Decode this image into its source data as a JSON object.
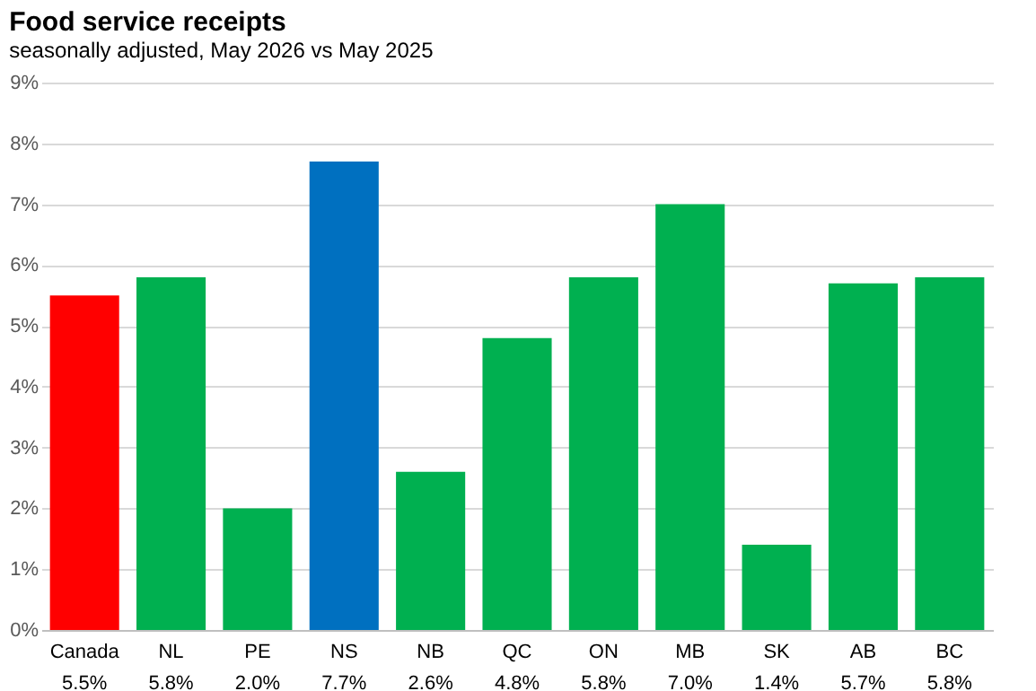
{
  "chart_data": {
    "type": "bar",
    "title": "Food service receipts",
    "subtitle": "seasonally adjusted, May 2026 vs May 2025",
    "categories": [
      "Canada",
      "NL",
      "PE",
      "NS",
      "NB",
      "QC",
      "ON",
      "MB",
      "SK",
      "AB",
      "BC"
    ],
    "values": [
      5.5,
      5.8,
      2.0,
      7.7,
      2.6,
      4.8,
      5.8,
      7.0,
      1.4,
      5.7,
      5.8
    ],
    "colors": [
      "#ff0000",
      "#00b050",
      "#00b050",
      "#0070c0",
      "#00b050",
      "#00b050",
      "#00b050",
      "#00b050",
      "#00b050",
      "#00b050",
      "#00b050"
    ],
    "value_labels": [
      "5.5%",
      "5.8%",
      "2.0%",
      "7.7%",
      "2.6%",
      "4.8%",
      "5.8%",
      "7.0%",
      "1.4%",
      "5.7%",
      "5.8%"
    ],
    "ylim": [
      0,
      9
    ],
    "yticks": [
      {
        "value": 0,
        "label": "0%"
      },
      {
        "value": 1,
        "label": "1%"
      },
      {
        "value": 2,
        "label": "2%"
      },
      {
        "value": 3,
        "label": "3%"
      },
      {
        "value": 4,
        "label": "4%"
      },
      {
        "value": 5,
        "label": "5%"
      },
      {
        "value": 6,
        "label": "6%"
      },
      {
        "value": 7,
        "label": "7%"
      },
      {
        "value": 8,
        "label": "8%"
      },
      {
        "value": 9,
        "label": "9%"
      }
    ],
    "grid": true,
    "legend": false
  }
}
